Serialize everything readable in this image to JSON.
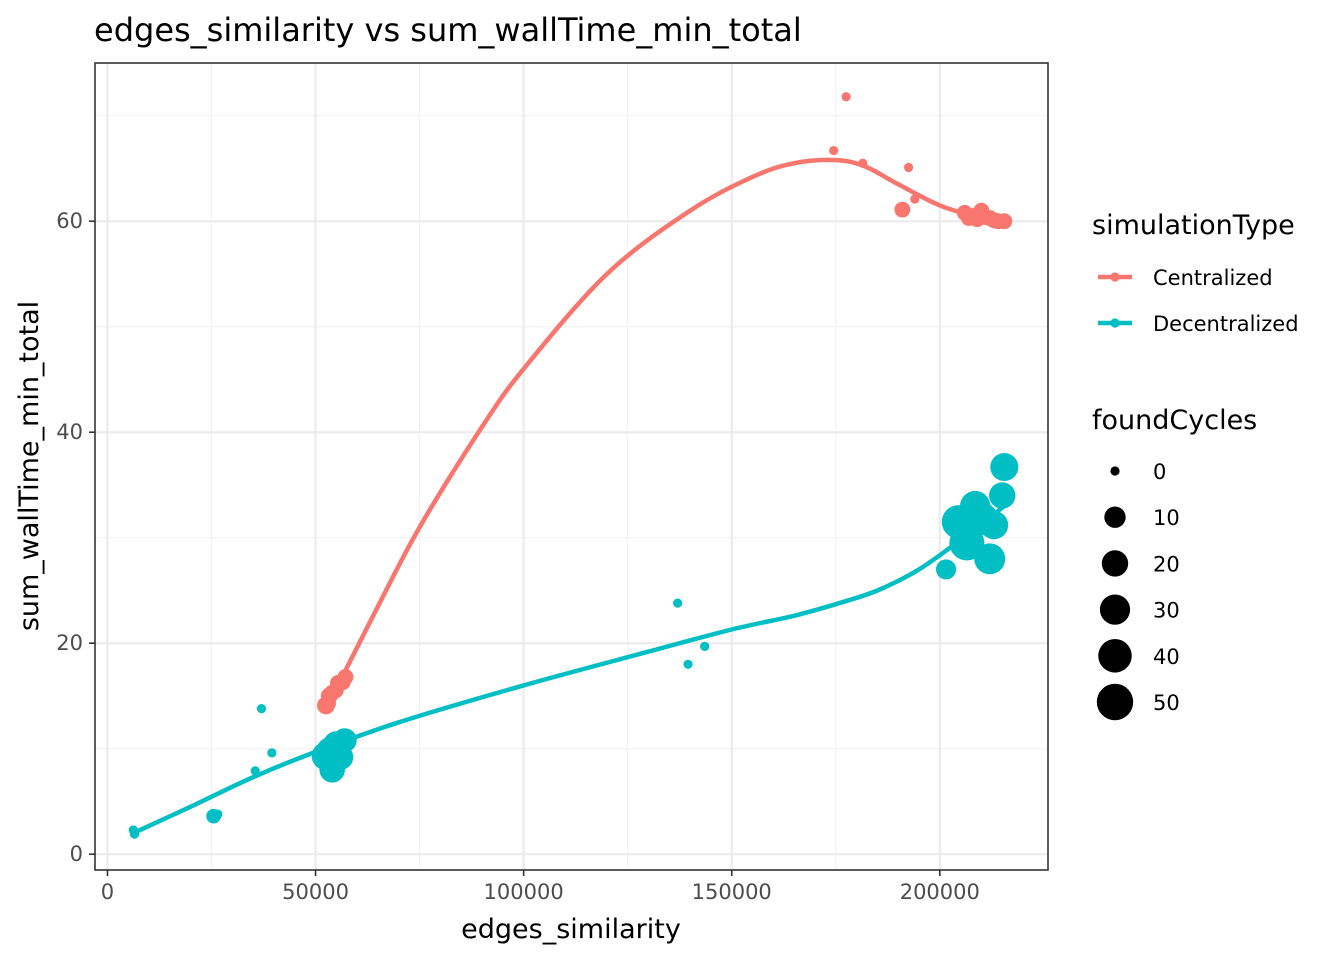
{
  "chart_data": {
    "type": "scatter",
    "title": "edges_similarity  vs  sum_wallTime_min_total",
    "xlabel": "edges_similarity",
    "ylabel": "sum_wallTime_min_total",
    "xlim": [
      -3000,
      226000
    ],
    "ylim": [
      -1.5,
      75
    ],
    "x_ticks": [
      0,
      50000,
      100000,
      150000,
      200000
    ],
    "x_tick_labels": [
      "0",
      "50000",
      "100000",
      "150000",
      "200000"
    ],
    "y_ticks": [
      0,
      20,
      40,
      60
    ],
    "y_tick_labels": [
      "0",
      "20",
      "40",
      "60"
    ],
    "grid": true,
    "legend_position": "right",
    "color_legend": {
      "title": "simulationType",
      "entries": [
        {
          "label": "Centralized",
          "color": "#F8766D"
        },
        {
          "label": "Decentralized",
          "color": "#00BFC4"
        }
      ]
    },
    "size_legend": {
      "title": "foundCycles",
      "entries": [
        {
          "label": "0",
          "value": 0
        },
        {
          "label": "10",
          "value": 10
        },
        {
          "label": "20",
          "value": 20
        },
        {
          "label": "30",
          "value": 30
        },
        {
          "label": "40",
          "value": 40
        },
        {
          "label": "50",
          "value": 50
        }
      ]
    },
    "series": [
      {
        "name": "Centralized",
        "color": "#F8766D",
        "points": [
          {
            "x": 52500,
            "y": 14.1,
            "size": 5
          },
          {
            "x": 53000,
            "y": 14.3,
            "size": 3
          },
          {
            "x": 53300,
            "y": 15.0,
            "size": 4
          },
          {
            "x": 54000,
            "y": 15.3,
            "size": 3
          },
          {
            "x": 55000,
            "y": 15.5,
            "size": 2
          },
          {
            "x": 55500,
            "y": 16.2,
            "size": 4
          },
          {
            "x": 56500,
            "y": 16.3,
            "size": 3
          },
          {
            "x": 57200,
            "y": 16.8,
            "size": 3
          },
          {
            "x": 174500,
            "y": 66.7,
            "size": 0
          },
          {
            "x": 177500,
            "y": 71.8,
            "size": 0
          },
          {
            "x": 181500,
            "y": 65.5,
            "size": 0
          },
          {
            "x": 191000,
            "y": 61.1,
            "size": 3
          },
          {
            "x": 192500,
            "y": 65.1,
            "size": 0
          },
          {
            "x": 194000,
            "y": 62.1,
            "size": 0
          },
          {
            "x": 206000,
            "y": 60.8,
            "size": 3
          },
          {
            "x": 207000,
            "y": 60.3,
            "size": 3
          },
          {
            "x": 208000,
            "y": 60.5,
            "size": 3
          },
          {
            "x": 209000,
            "y": 60.2,
            "size": 3
          },
          {
            "x": 210000,
            "y": 61.0,
            "size": 3
          },
          {
            "x": 211000,
            "y": 60.4,
            "size": 3
          },
          {
            "x": 212000,
            "y": 60.3,
            "size": 3
          },
          {
            "x": 213000,
            "y": 60.1,
            "size": 3
          },
          {
            "x": 214000,
            "y": 60.0,
            "size": 3
          },
          {
            "x": 215500,
            "y": 60.0,
            "size": 3
          }
        ],
        "smooth": [
          [
            52500,
            14.1
          ],
          [
            56000,
            16.5
          ],
          [
            65000,
            23.5
          ],
          [
            75000,
            31.0
          ],
          [
            90000,
            40.5
          ],
          [
            100000,
            46.0
          ],
          [
            120000,
            55.0
          ],
          [
            140000,
            61.0
          ],
          [
            155000,
            64.2
          ],
          [
            165000,
            65.5
          ],
          [
            175000,
            65.8
          ],
          [
            182000,
            65.2
          ],
          [
            190000,
            63.5
          ],
          [
            200000,
            61.5
          ],
          [
            210000,
            60.3
          ],
          [
            215500,
            60.0
          ]
        ]
      },
      {
        "name": "Decentralized",
        "color": "#00BFC4",
        "points": [
          {
            "x": 6200,
            "y": 2.3,
            "size": 0
          },
          {
            "x": 6500,
            "y": 1.9,
            "size": 0
          },
          {
            "x": 25500,
            "y": 3.6,
            "size": 2
          },
          {
            "x": 26500,
            "y": 3.8,
            "size": 0
          },
          {
            "x": 35500,
            "y": 7.9,
            "size": 0
          },
          {
            "x": 37000,
            "y": 13.8,
            "size": 0
          },
          {
            "x": 39500,
            "y": 9.6,
            "size": 0
          },
          {
            "x": 52500,
            "y": 9.3,
            "size": 25
          },
          {
            "x": 53500,
            "y": 9.8,
            "size": 22
          },
          {
            "x": 54000,
            "y": 8.0,
            "size": 18
          },
          {
            "x": 55000,
            "y": 10.4,
            "size": 20
          },
          {
            "x": 56000,
            "y": 9.2,
            "size": 18
          },
          {
            "x": 57000,
            "y": 10.8,
            "size": 15
          },
          {
            "x": 137000,
            "y": 23.8,
            "size": 0
          },
          {
            "x": 139500,
            "y": 18.0,
            "size": 0
          },
          {
            "x": 143500,
            "y": 19.7,
            "size": 0
          },
          {
            "x": 201500,
            "y": 27.0,
            "size": 8
          },
          {
            "x": 204500,
            "y": 31.5,
            "size": 40
          },
          {
            "x": 206500,
            "y": 29.5,
            "size": 45
          },
          {
            "x": 208500,
            "y": 33.0,
            "size": 30
          },
          {
            "x": 210000,
            "y": 31.8,
            "size": 38
          },
          {
            "x": 212000,
            "y": 28.0,
            "size": 32
          },
          {
            "x": 213000,
            "y": 31.2,
            "size": 25
          },
          {
            "x": 215000,
            "y": 34.0,
            "size": 20
          },
          {
            "x": 215500,
            "y": 36.7,
            "size": 24
          }
        ],
        "smooth": [
          [
            6200,
            2.0
          ],
          [
            20000,
            4.5
          ],
          [
            35000,
            7.3
          ],
          [
            50000,
            9.7
          ],
          [
            70000,
            12.5
          ],
          [
            100000,
            16.0
          ],
          [
            130000,
            19.2
          ],
          [
            150000,
            21.3
          ],
          [
            165000,
            22.6
          ],
          [
            175000,
            23.7
          ],
          [
            185000,
            25.0
          ],
          [
            195000,
            27.0
          ],
          [
            205000,
            29.8
          ],
          [
            215500,
            33.0
          ]
        ]
      }
    ]
  }
}
